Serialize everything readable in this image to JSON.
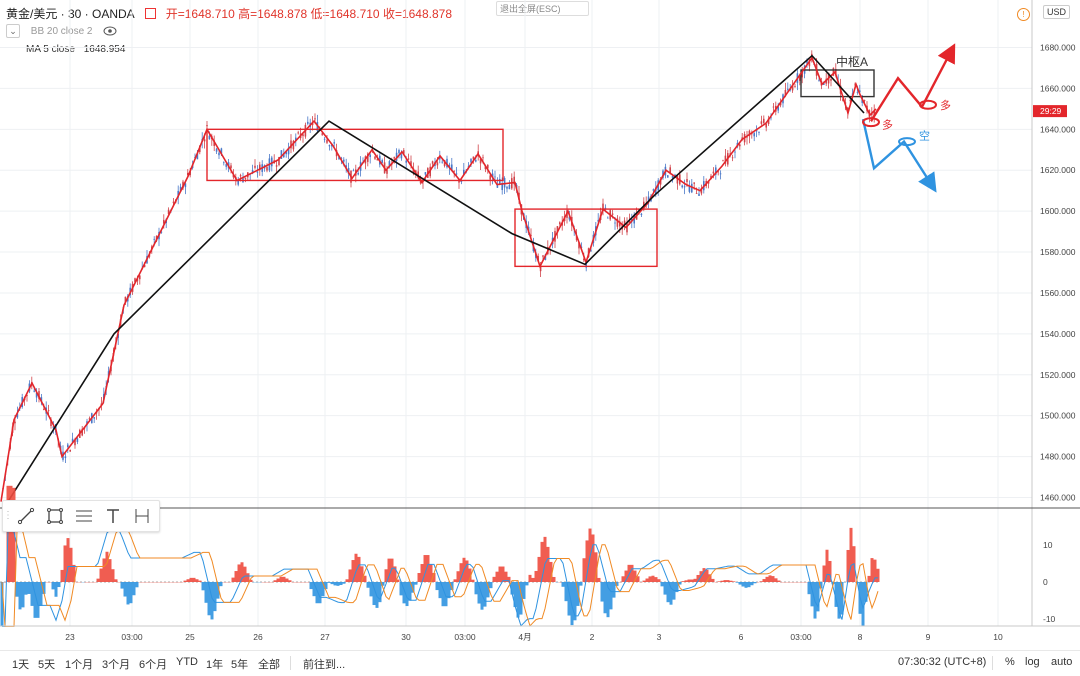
{
  "header": {
    "symbol": "黄金/美元 · 30 · OANDA",
    "open": "开=1648.710",
    "high": "高=1648.878",
    "low": "低=1648.710",
    "close": "收=1648.878",
    "bb": "BB 20 close 2",
    "ma_label": "MA 5 close",
    "ma_value": "1648.954",
    "exit_fullscreen": "退出全屏(ESC)",
    "currency": "USD"
  },
  "chart_data": {
    "type": "line",
    "x_ticks": [
      "23",
      "03:00",
      "25",
      "26",
      "27",
      "30",
      "03:00",
      "4月",
      "2",
      "3",
      "6",
      "03:00",
      "8",
      "9",
      "10"
    ],
    "y_ticks": [
      "1680.000",
      "1660.000",
      "1640.000",
      "1620.000",
      "1600.000",
      "1580.000",
      "1560.000",
      "1540.000",
      "1520.000",
      "1500.000",
      "1480.000",
      "1460.000"
    ],
    "ylim": [
      1456,
      1694
    ],
    "price_label": "29:29",
    "price_label_value": 1648.9,
    "series": [
      {
        "color": "#e3262b",
        "points": [
          [
            1,
            1458
          ],
          [
            14,
            1498
          ],
          [
            32,
            1516
          ],
          [
            56,
            1493
          ],
          [
            62,
            1480
          ],
          [
            103,
            1506
          ],
          [
            124,
            1554
          ],
          [
            188,
            1617
          ],
          [
            207,
            1640
          ],
          [
            237,
            1615
          ],
          [
            278,
            1625
          ],
          [
            314,
            1644
          ],
          [
            333,
            1632
          ],
          [
            352,
            1616
          ],
          [
            372,
            1630
          ],
          [
            386,
            1620
          ],
          [
            402,
            1629
          ],
          [
            422,
            1614
          ],
          [
            440,
            1627
          ],
          [
            460,
            1615
          ],
          [
            478,
            1628
          ],
          [
            497,
            1613
          ],
          [
            515,
            1614
          ],
          [
            522,
            1600
          ],
          [
            540,
            1573
          ],
          [
            568,
            1600
          ],
          [
            586,
            1575
          ],
          [
            603,
            1601
          ],
          [
            626,
            1592
          ],
          [
            648,
            1604
          ],
          [
            666,
            1620
          ],
          [
            686,
            1613
          ],
          [
            700,
            1610
          ],
          [
            722,
            1622
          ],
          [
            742,
            1635
          ],
          [
            766,
            1643
          ],
          [
            812,
            1675
          ],
          [
            822,
            1662
          ],
          [
            835,
            1668
          ],
          [
            848,
            1648
          ],
          [
            856,
            1662
          ],
          [
            860,
            1657
          ],
          [
            870,
            1647
          ],
          [
            876,
            1650
          ]
        ]
      },
      {
        "color": "#111111",
        "points": [
          [
            8,
            1458
          ],
          [
            114,
            1540
          ],
          [
            329,
            1644
          ],
          [
            512,
            1589
          ],
          [
            585,
            1574
          ],
          [
            655,
            1608
          ],
          [
            812,
            1676
          ],
          [
            864,
            1648
          ]
        ]
      }
    ],
    "zones": [
      {
        "color": "#e3262b",
        "x0": 207,
        "x1": 503,
        "y0": 1615,
        "y1": 1640
      },
      {
        "color": "#e3262b",
        "x0": 515,
        "x1": 657,
        "y0": 1573,
        "y1": 1601
      },
      {
        "color": "#333333",
        "x0": 801,
        "x1": 874,
        "y0": 1656,
        "y1": 1669
      }
    ],
    "projections": [
      {
        "color": "#e3262b",
        "points": [
          [
            871,
            1644
          ],
          [
            898,
            1665
          ],
          [
            922,
            1651
          ],
          [
            953,
            1680
          ]
        ]
      },
      {
        "color": "#2f93e0",
        "points": [
          [
            863,
            1645
          ],
          [
            874,
            1621
          ],
          [
            904,
            1634
          ],
          [
            934,
            1611
          ]
        ]
      }
    ],
    "labels": {
      "zone_a": "中枢A",
      "long1": "多",
      "long2": "多",
      "short": "空"
    }
  },
  "indicator": {
    "y_ticks": [
      "10",
      "0",
      "-10"
    ]
  },
  "bottom": {
    "ranges": [
      "1天",
      "5天",
      "1个月",
      "3个月",
      "6个月",
      "YTD",
      "1年",
      "5年",
      "全部"
    ],
    "goto": "前往到...",
    "time": "07:30:32 (UTC+8)",
    "pct": "%",
    "log": "log",
    "auto": "auto"
  }
}
